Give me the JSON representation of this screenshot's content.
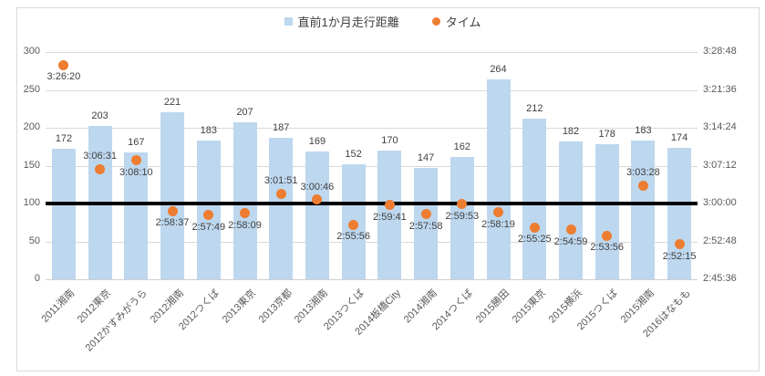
{
  "legend": {
    "distance_label": "直前1か月走行距離",
    "time_label": "タイム"
  },
  "colors": {
    "bar": "#BDD7EE",
    "marker": "#ED7D31",
    "reference_line": "#000000",
    "gridline": "#D9D9D9",
    "axis_text": "#595959",
    "data_label_text": "#404040",
    "frame_border": "#D9D9D9"
  },
  "chart_data": {
    "type": "bar",
    "subtype": "combo-bar-scatter-dual-axis",
    "categories": [
      "2011湘南",
      "2012東京",
      "2012かすみがうら",
      "2012湘南",
      "2012つくば",
      "2013東京",
      "2013京都",
      "2013湘南",
      "2013つくば",
      "2014板橋City",
      "2014湘南",
      "2014つくば",
      "2015勝田",
      "2015東京",
      "2015横浜",
      "2015つくば",
      "2015湘南",
      "2016はなもも"
    ],
    "series": [
      {
        "name": "直前1か月走行距離",
        "chart_type": "bar",
        "axis": "left",
        "color": "#BDD7EE",
        "values": [
          172,
          203,
          167,
          221,
          183,
          207,
          187,
          169,
          152,
          170,
          147,
          162,
          264,
          212,
          182,
          178,
          183,
          174
        ]
      },
      {
        "name": "タイム",
        "chart_type": "scatter",
        "axis": "right",
        "color": "#ED7D31",
        "values": [
          "3:26:20",
          "3:06:31",
          "3:08:10",
          "2:58:37",
          "2:57:49",
          "2:58:09",
          "3:01:51",
          "3:00:46",
          "2:55:56",
          "2:59:41",
          "2:57:58",
          "2:59:53",
          "2:58:19",
          "2:55:25",
          "2:54:59",
          "2:53:56",
          "3:03:28",
          "2:52:15"
        ],
        "label_positions": [
          "below",
          "above",
          "below",
          "below",
          "below",
          "below",
          "above",
          "above",
          "below",
          "below",
          "below",
          "below",
          "below",
          "below",
          "below",
          "below",
          "above",
          "below"
        ]
      }
    ],
    "left_axis": {
      "min": 0,
      "max": 300,
      "ticks": [
        0,
        50,
        100,
        150,
        200,
        250,
        300
      ]
    },
    "right_axis": {
      "min": "2:45:36",
      "max": "3:28:48",
      "ticks": [
        "2:45:36",
        "2:52:48",
        "3:00:00",
        "3:07:12",
        "3:14:24",
        "3:21:36",
        "3:28:48"
      ]
    },
    "reference_line": {
      "left_value": 100,
      "right_value": "3:00:00"
    },
    "grid": true,
    "legend_position": "top-center",
    "title": ""
  }
}
